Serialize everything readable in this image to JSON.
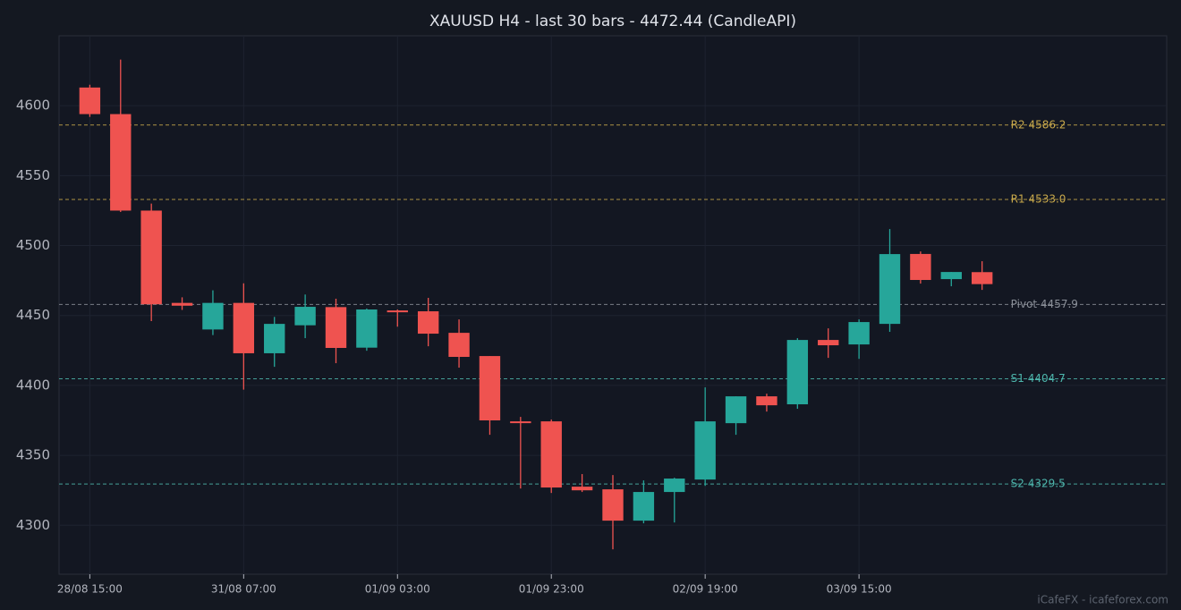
{
  "chart_data": {
    "type": "candlestick",
    "title": "XAUUSD H4 - last 30 bars - 4472.44 (CandleAPI)",
    "categories": [
      "28/08 15:00",
      null,
      null,
      null,
      null,
      "31/08 07:00",
      null,
      null,
      null,
      null,
      "01/09 03:00",
      null,
      null,
      null,
      null,
      "01/09 23:00",
      null,
      null,
      null,
      null,
      "02/09 19:00",
      null,
      null,
      null,
      null,
      "03/09 15:00",
      null,
      null,
      null,
      null
    ],
    "open": [
      4613,
      4594,
      4525,
      4459,
      4440,
      4459,
      4423,
      4443,
      4456,
      4427,
      4453.6,
      4453,
      4437.6,
      4421,
      4374.3,
      4374.3,
      4327.6,
      4325.7,
      4303.3,
      4323.8,
      4332.7,
      4373,
      4392.2,
      4386.5,
      4432.5,
      4429.3,
      4444,
      4494,
      4476,
      4481
    ],
    "high": [
      4615,
      4633,
      4530,
      4463,
      4468,
      4473,
      4449,
      4465,
      4462,
      4455,
      4454.3,
      4462.6,
      4447.2,
      4421,
      4377.5,
      4375.6,
      4336.6,
      4335.9,
      4332.1,
      4334,
      4398.6,
      4392.2,
      4394.1,
      4433.8,
      4440.8,
      4447.2,
      4511.8,
      4495.8,
      4481.1,
      4488.8
    ],
    "low": [
      4592,
      4524,
      4446,
      4454,
      4436,
      4397,
      4413.3,
      4433.8,
      4415.9,
      4424.8,
      4442,
      4428,
      4412.7,
      4364.7,
      4326.3,
      4323.1,
      4323.8,
      4282.8,
      4301.4,
      4302,
      4328.2,
      4364.7,
      4381.3,
      4383.3,
      4419.7,
      4419,
      4438.3,
      4472.8,
      4470.9,
      4468.3
    ],
    "close": [
      4594,
      4525,
      4458,
      4457,
      4459,
      4423,
      4444,
      4456.2,
      4426.8,
      4454.3,
      4452.3,
      4437,
      4420.4,
      4375,
      4373.7,
      4327,
      4325,
      4303.3,
      4323.8,
      4333.4,
      4374.3,
      4392.2,
      4385.8,
      4432.5,
      4428.7,
      4445.3,
      4493.9,
      4475.4,
      4481.1,
      4472.44
    ],
    "up_color": "#26a69a",
    "down_color": "#ef5350",
    "ylim": [
      4265,
      4650
    ],
    "yticks": [
      4300,
      4350,
      4400,
      4450,
      4500,
      4550,
      4600
    ],
    "grid": true,
    "levels": [
      {
        "label": "R2 4586.2",
        "value": 4586.2,
        "color": "#c9a94b"
      },
      {
        "label": "R1 4533.0",
        "value": 4533.0,
        "color": "#c9a94b"
      },
      {
        "label": "Pivot 4457.9",
        "value": 4457.9,
        "color": "#8a8f98"
      },
      {
        "label": "S1 4404.7",
        "value": 4404.7,
        "color": "#4db6ac"
      },
      {
        "label": "S2 4329.5",
        "value": 4329.5,
        "color": "#4db6ac"
      }
    ]
  },
  "watermark": "iCafeFX - icafeforex.com"
}
